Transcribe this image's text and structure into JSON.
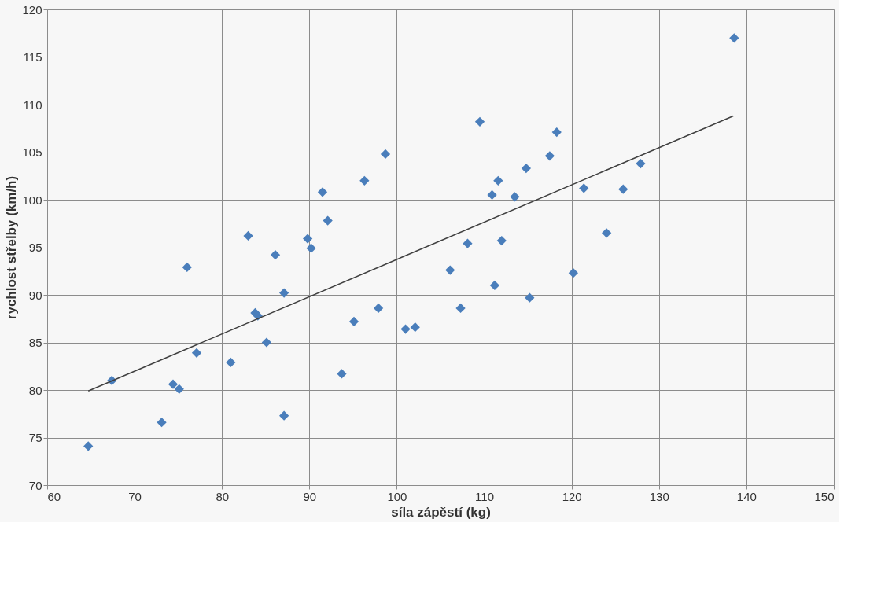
{
  "chart_data": {
    "type": "scatter",
    "xlabel": "síla zápěstí (kg)",
    "ylabel": "rychlost střelby (km/h)",
    "xlim": [
      60,
      150
    ],
    "xticks": [
      60,
      70,
      80,
      90,
      100,
      110,
      120,
      130,
      140,
      150
    ],
    "ylim": [
      70,
      120
    ],
    "yticks": [
      70,
      75,
      80,
      85,
      90,
      95,
      100,
      105,
      110,
      115,
      120
    ],
    "grid": true,
    "series": [
      {
        "marker": "diamond",
        "color": "#4a7ebb",
        "x": [
          64.7,
          67.4,
          73.1,
          74.4,
          75.1,
          76.0,
          77.1,
          81.0,
          83.0,
          83.8,
          84.1,
          85.1,
          86.1,
          87.1,
          87.1,
          89.8,
          90.2,
          91.5,
          92.1,
          93.7,
          95.1,
          96.3,
          97.9,
          98.7,
          101.0,
          102.1,
          106.1,
          107.3,
          108.1,
          109.5,
          110.9,
          111.2,
          111.6,
          112.0,
          113.5,
          114.8,
          115.2,
          117.5,
          118.3,
          120.2,
          121.4,
          124.0,
          125.9,
          127.9,
          138.6
        ],
        "values": [
          74.1,
          81.0,
          76.6,
          80.6,
          80.1,
          92.9,
          83.9,
          82.9,
          96.2,
          88.1,
          87.8,
          85.0,
          94.2,
          90.2,
          77.3,
          95.9,
          94.9,
          100.8,
          97.8,
          81.7,
          87.2,
          102.0,
          88.6,
          104.8,
          86.4,
          86.6,
          92.6,
          88.6,
          95.4,
          108.2,
          100.5,
          91.0,
          102.0,
          95.7,
          100.3,
          103.3,
          89.7,
          104.6,
          107.1,
          92.3,
          101.2,
          96.5,
          101.1,
          103.8,
          117.0
        ]
      },
      {
        "type": "line",
        "color": "#404040",
        "line_style": "solid",
        "x": [
          64.7,
          138.5
        ],
        "values": [
          79.9,
          108.8
        ]
      }
    ]
  }
}
